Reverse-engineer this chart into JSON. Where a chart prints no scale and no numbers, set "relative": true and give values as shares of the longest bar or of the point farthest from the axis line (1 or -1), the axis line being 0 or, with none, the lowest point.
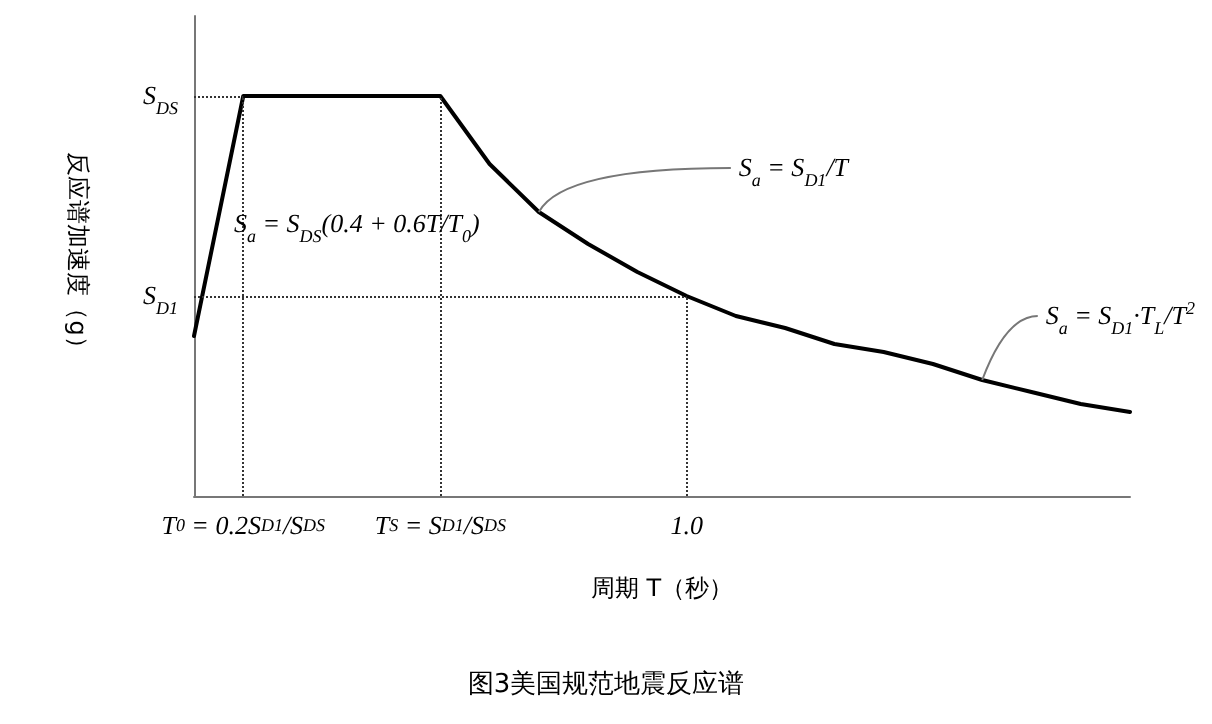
{
  "chart_data": {
    "type": "line",
    "title": "图3美国规范地震反应谱",
    "xlabel": "周期 T（秒）",
    "ylabel": "反应谱加速度（g）",
    "relative": true,
    "categories": [
      null,
      "T$_{0}$ = 0.2S$_{D1}$/S$_{DS}$",
      null,
      null,
      null,
      "T$_{S}$ = S$_{D1}$/S$_{DS}$",
      null,
      null,
      null,
      null,
      "1.0",
      null,
      null,
      null,
      null,
      null,
      null,
      null,
      null,
      null
    ],
    "series": [
      {
        "color": "#000000",
        "values": [
          0.4,
          1,
          1,
          1,
          1,
          1,
          0.83,
          0.71,
          0.63,
          0.56,
          0.5,
          0.45,
          0.42,
          0.38,
          0.36,
          0.33,
          0.29,
          0.26,
          0.23,
          0.21
        ]
      }
    ],
    "ref_lines": [
      {
        "axis": "x",
        "value": "T$_{0}$ = 0.2S$_{D1}$/S$_{DS}$",
        "line_style": "dotted"
      },
      {
        "axis": "x",
        "value": "T$_{S}$ = S$_{D1}$/S$_{DS}$",
        "line_style": "dotted"
      },
      {
        "axis": "x",
        "value": "1.0",
        "line_style": "dotted"
      },
      {
        "axis": "y",
        "value": 1,
        "label": "S$_{DS}$",
        "line_style": "dotted"
      },
      {
        "axis": "y",
        "value": 0.5,
        "label": "S$_{D1}$",
        "line_style": "dotted"
      }
    ],
    "annotations": [
      "S$_{a}$ = S$_{DS}$(0.4 + 0.6T/T$_{0}$)",
      "S$_{a}$ = S$_{D1}$/T",
      "S$_{a}$ = S$_{D1}$·T$_{L}$/T$^{2}$"
    ],
    "marker": "none",
    "line_style": "solid"
  }
}
